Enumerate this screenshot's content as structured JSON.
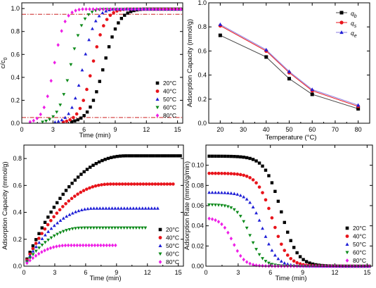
{
  "chart_data": [
    {
      "id": "a",
      "type": "scatter",
      "xlabel": "Time (min)",
      "ylabel": "c/c0",
      "ylabel_main": "c/c",
      "ylabel_sub": "0",
      "xlim": [
        0,
        15.5
      ],
      "ylim": [
        0,
        1.05
      ],
      "xticks": [
        0,
        3,
        6,
        9,
        12,
        15
      ],
      "yticks": [
        0.0,
        0.2,
        0.4,
        0.6,
        0.8,
        1.0
      ],
      "ytick_labels": [
        "0.0",
        "0.2",
        "0.4",
        "0.6",
        "0.8",
        "1.0"
      ],
      "reference_lines": [
        0.95,
        0.05
      ],
      "reference_color": "#cc2222",
      "legend": "right",
      "series": [
        {
          "name": "20°C",
          "marker": "square",
          "color": "#000000",
          "x_start": 4.8,
          "x_end": 15.3,
          "n": 36,
          "mid": 7.9,
          "width": 0.72
        },
        {
          "name": "40°C",
          "marker": "circle",
          "color": "#e8141b",
          "x_start": 4.0,
          "x_end": 15.3,
          "n": 36,
          "mid": 6.8,
          "width": 0.62
        },
        {
          "name": "50°C",
          "marker": "triangle-up",
          "color": "#1f1fd6",
          "x_start": 3.2,
          "x_end": 15.3,
          "n": 38,
          "mid": 5.9,
          "width": 0.58
        },
        {
          "name": "60°C",
          "marker": "triangle-down",
          "color": "#0c8a1a",
          "x_start": 2.0,
          "x_end": 15.3,
          "n": 40,
          "mid": 4.7,
          "width": 0.6
        },
        {
          "name": "80°C",
          "marker": "diamond",
          "color": "#ee1fe6",
          "x_start": 0.8,
          "x_end": 15.3,
          "n": 44,
          "mid": 3.1,
          "width": 0.52
        }
      ]
    },
    {
      "id": "b",
      "type": "line",
      "xlabel": "Temperature (°C)",
      "ylabel": "Adsorption Capacity (mmol/g)",
      "xlim": [
        15,
        85
      ],
      "ylim": [
        0.0,
        1.0
      ],
      "xticks": [
        20,
        30,
        40,
        50,
        60,
        70,
        80
      ],
      "yticks": [
        0.0,
        0.2,
        0.4,
        0.6,
        0.8,
        1.0
      ],
      "ytick_labels": [
        "0.0",
        "0.2",
        "0.4",
        "0.6",
        "0.8",
        "1.0"
      ],
      "legend": "top-right",
      "x": [
        20,
        40,
        50,
        60,
        80
      ],
      "series": [
        {
          "name": "qb",
          "label_main": "q",
          "label_sub": "b",
          "marker": "square",
          "color": "#000000",
          "line_color": "#444444",
          "values": [
            0.73,
            0.55,
            0.37,
            0.24,
            0.12
          ]
        },
        {
          "name": "qs",
          "label_main": "q",
          "label_sub": "s",
          "marker": "circle",
          "color": "#e8141b",
          "line_color": "#e8141b",
          "values": [
            0.81,
            0.6,
            0.42,
            0.27,
            0.14
          ]
        },
        {
          "name": "qe",
          "label_main": "q",
          "label_sub": "e",
          "marker": "triangle-up",
          "color": "#1f1fd6",
          "line_color": "#8a7be0",
          "values": [
            0.82,
            0.61,
            0.43,
            0.28,
            0.15
          ]
        }
      ]
    },
    {
      "id": "c",
      "type": "scatter",
      "xlabel": "Time (min)",
      "ylabel": "Adsorption Capacity (mmol/g)",
      "xlim": [
        0,
        15.5
      ],
      "ylim": [
        0,
        0.9
      ],
      "xticks": [
        0,
        3,
        6,
        9,
        12,
        15
      ],
      "yticks": [
        0.0,
        0.2,
        0.4,
        0.6,
        0.8
      ],
      "ytick_labels": [
        "0.0",
        "0.2",
        "0.4",
        "0.6",
        "0.8"
      ],
      "legend": "right",
      "series": [
        {
          "name": "20°C",
          "marker": "square",
          "color": "#000000",
          "x_start": 0.3,
          "x_end": 15.2,
          "n": 52,
          "qmax": 0.82,
          "t_sat": 10.0
        },
        {
          "name": "40°C",
          "marker": "circle",
          "color": "#e8141b",
          "x_start": 0.3,
          "x_end": 14.5,
          "n": 50,
          "qmax": 0.61,
          "t_sat": 8.5
        },
        {
          "name": "50°C",
          "marker": "triangle-up",
          "color": "#1f1fd6",
          "x_start": 0.3,
          "x_end": 13.0,
          "n": 44,
          "qmax": 0.43,
          "t_sat": 7.0
        },
        {
          "name": "60°C",
          "marker": "triangle-down",
          "color": "#0c8a1a",
          "x_start": 0.3,
          "x_end": 11.8,
          "n": 40,
          "qmax": 0.285,
          "t_sat": 5.8
        },
        {
          "name": "80°C",
          "marker": "diamond",
          "color": "#ee1fe6",
          "x_start": 0.3,
          "x_end": 8.9,
          "n": 31,
          "qmax": 0.155,
          "t_sat": 4.3
        }
      ]
    },
    {
      "id": "d",
      "type": "scatter",
      "xlabel": "Time (min)",
      "ylabel": "Adsorption Rate (mmol/g/min)",
      "xlim": [
        0,
        15.5
      ],
      "ylim": [
        0,
        0.12
      ],
      "xticks": [
        0,
        3,
        6,
        9,
        12,
        15
      ],
      "yticks": [
        0.0,
        0.02,
        0.04,
        0.06,
        0.08,
        0.1
      ],
      "ytick_labels": [
        "0.00",
        "0.02",
        "0.04",
        "0.06",
        "0.08",
        "0.10"
      ],
      "legend": "right",
      "series": [
        {
          "name": "20°C",
          "marker": "square",
          "color": "#000000",
          "x_start": 0.3,
          "x_end": 15.2,
          "n": 52,
          "rmax": 0.109,
          "t_half": 7.0,
          "w": 0.75
        },
        {
          "name": "40°C",
          "marker": "circle",
          "color": "#e8141b",
          "x_start": 0.3,
          "x_end": 15.2,
          "n": 52,
          "rmax": 0.092,
          "t_half": 6.2,
          "w": 0.7
        },
        {
          "name": "50°C",
          "marker": "triangle-up",
          "color": "#1f1fd6",
          "x_start": 0.3,
          "x_end": 15.2,
          "n": 52,
          "rmax": 0.073,
          "t_half": 5.3,
          "w": 0.65
        },
        {
          "name": "60°C",
          "marker": "triangle-down",
          "color": "#0c8a1a",
          "x_start": 0.3,
          "x_end": 15.2,
          "n": 52,
          "rmax": 0.061,
          "t_half": 4.1,
          "w": 0.6
        },
        {
          "name": "80°C",
          "marker": "diamond",
          "color": "#ee1fe6",
          "x_start": 0.3,
          "x_end": 15.2,
          "n": 52,
          "rmax": 0.048,
          "t_half": 2.5,
          "w": 0.55
        }
      ]
    }
  ]
}
